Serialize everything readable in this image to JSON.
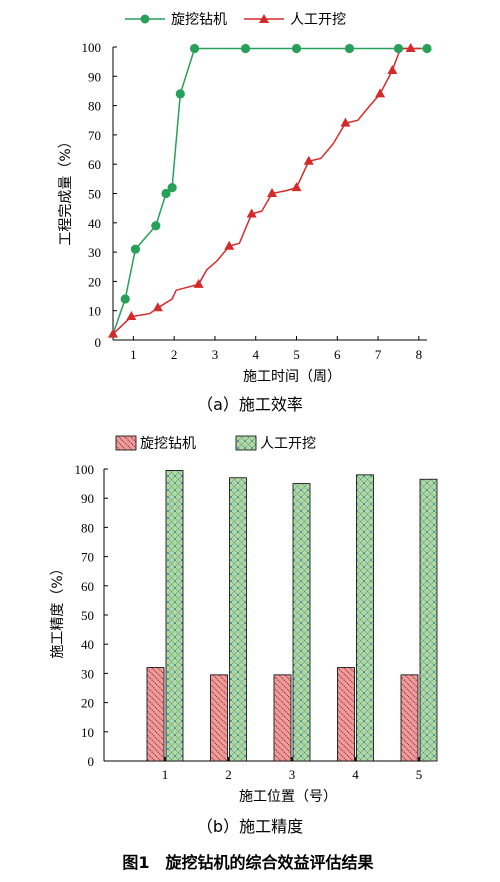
{
  "figure_caption": "图1　旋挖钻机的综合效益评估结果",
  "colors": {
    "green": "#27a05a",
    "red": "#d42a2a",
    "bar_red": "#e7a0a0",
    "bar_red_line": "#cc2222",
    "bar_green": "#b9d99c",
    "bar_green_line": "#2f8fa8"
  },
  "chart_data": [
    {
      "type": "line",
      "caption": "（a）施工效率",
      "xlabel": "施工时间（周）",
      "ylabel": "工程完成量（%）",
      "xlim": [
        0.5,
        8.2
      ],
      "ylim": [
        0,
        100
      ],
      "xticks": [
        1,
        2,
        3,
        4,
        5,
        6,
        7,
        8
      ],
      "yticks": [
        10,
        20,
        30,
        40,
        50,
        60,
        70,
        80,
        90,
        100
      ],
      "origin_label": "0",
      "legend": "top",
      "series": [
        {
          "name": "旋挖钻机",
          "marker": "circle",
          "x": [
            0.5,
            0.8,
            1.05,
            1.55,
            1.8,
            1.95,
            2.15,
            2.5,
            3.75,
            5.0,
            6.3,
            7.5,
            8.2
          ],
          "y": [
            2,
            14,
            31,
            39,
            50,
            52,
            84,
            99.5,
            99.5,
            99.5,
            99.5,
            99.5,
            99.5
          ],
          "marker_x": [
            0.8,
            1.05,
            1.55,
            1.8,
            1.95,
            2.15,
            2.5,
            3.75,
            5.0,
            6.3,
            7.5,
            8.2
          ],
          "marker_y": [
            14,
            31,
            39,
            50,
            52,
            84,
            99.5,
            99.5,
            99.5,
            99.5,
            99.5,
            99.5
          ]
        },
        {
          "name": "人工开挖",
          "marker": "triangle",
          "x": [
            0.5,
            0.95,
            1.4,
            1.6,
            1.95,
            2.05,
            2.6,
            2.8,
            3.05,
            3.35,
            3.6,
            3.9,
            4.15,
            4.4,
            4.75,
            5.0,
            5.3,
            5.6,
            5.9,
            6.2,
            6.5,
            6.8,
            7.05,
            7.35,
            7.55,
            7.8,
            8.05
          ],
          "y": [
            2,
            8,
            9,
            11,
            14,
            17,
            19,
            24,
            27,
            32,
            33,
            43,
            44,
            50,
            51,
            52,
            61,
            62,
            67,
            74,
            75,
            80,
            84,
            92,
            99.5,
            99.5,
            99.5
          ],
          "marker_x": [
            0.5,
            0.95,
            1.6,
            2.6,
            3.35,
            3.9,
            4.4,
            5.0,
            5.3,
            6.2,
            7.05,
            7.35,
            7.8
          ],
          "marker_y": [
            2,
            8,
            11,
            19,
            32,
            43,
            50,
            52,
            61,
            74,
            84,
            92,
            99.5
          ]
        }
      ]
    },
    {
      "type": "bar",
      "caption": "（b）施工精度",
      "xlabel": "施工位置（号）",
      "ylabel": "施工精度（%）",
      "categories": [
        "1",
        "2",
        "3",
        "4",
        "5"
      ],
      "ylim": [
        0,
        100
      ],
      "yticks": [
        0,
        10,
        20,
        30,
        40,
        50,
        60,
        70,
        80,
        90,
        100
      ],
      "legend": "top",
      "series": [
        {
          "name": "旋挖钻机",
          "values": [
            32,
            29.5,
            29.5,
            32,
            29.5
          ]
        },
        {
          "name": "人工开挖",
          "values": [
            99.5,
            97,
            95,
            98,
            96.5
          ]
        }
      ]
    }
  ]
}
